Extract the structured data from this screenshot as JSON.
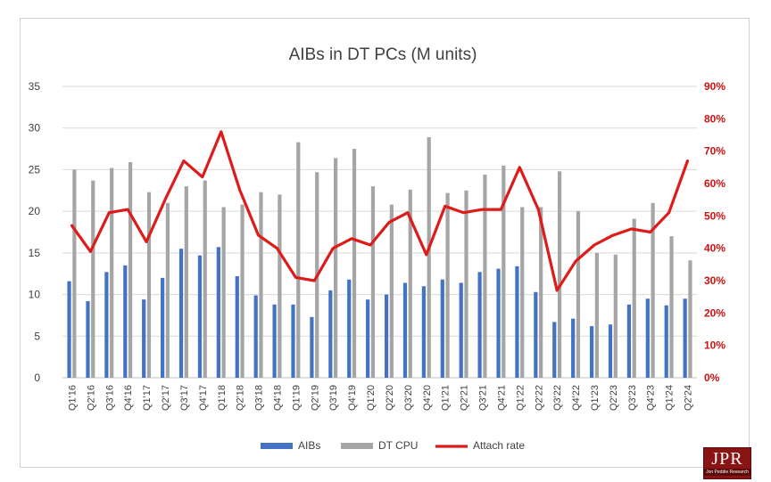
{
  "chart_data": {
    "type": "bar",
    "title": "AIBs in DT PCs (M units)",
    "categories": [
      "Q1'16",
      "Q2'16",
      "Q3'16",
      "Q4'16",
      "Q1'17",
      "Q2'17",
      "Q3'17",
      "Q4'17",
      "Q1'18",
      "Q2'18",
      "Q3'18",
      "Q4'18",
      "Q1'19",
      "Q2'19",
      "Q3'19",
      "Q4'19",
      "Q1'20",
      "Q2'20",
      "Q3'20",
      "Q4'20",
      "Q1'21",
      "Q2'21",
      "Q3'21",
      "Q4'21",
      "Q1'22",
      "Q2'22",
      "Q3'22",
      "Q4'22",
      "Q1'23",
      "Q2'23",
      "Q3'23",
      "Q4'23",
      "Q1'24",
      "Q2'24"
    ],
    "series": [
      {
        "name": "AIBs",
        "kind": "bar",
        "axis": "left",
        "color": "#4472c4",
        "values": [
          11.6,
          9.2,
          12.7,
          13.5,
          9.4,
          12.0,
          15.5,
          14.7,
          15.7,
          12.2,
          9.9,
          8.8,
          8.8,
          7.3,
          10.5,
          11.8,
          9.4,
          10.0,
          11.4,
          11.0,
          11.8,
          11.4,
          12.7,
          13.1,
          13.4,
          10.3,
          6.7,
          7.1,
          6.2,
          6.4,
          8.8,
          9.5,
          8.7,
          9.5
        ]
      },
      {
        "name": "DT CPU",
        "kind": "bar",
        "axis": "left",
        "color": "#a5a5a5",
        "values": [
          25.0,
          23.7,
          25.2,
          25.9,
          22.3,
          21.0,
          23.0,
          23.7,
          20.5,
          20.8,
          22.3,
          22.0,
          28.3,
          24.7,
          26.4,
          27.5,
          23.0,
          20.8,
          22.6,
          28.9,
          22.2,
          22.5,
          24.4,
          25.5,
          20.5,
          20.5,
          24.8,
          20.0,
          15.0,
          14.8,
          19.1,
          21.0,
          17.0,
          14.1
        ]
      },
      {
        "name": "Attach rate",
        "kind": "line",
        "axis": "right",
        "color": "#dd1c1a",
        "values": [
          47,
          39,
          51,
          52,
          42,
          55,
          67,
          62,
          76,
          58,
          44,
          40,
          31,
          30,
          40,
          43,
          41,
          48,
          51,
          38,
          53,
          51,
          52,
          52,
          65,
          52,
          27,
          36,
          41,
          44,
          46,
          45,
          51,
          67
        ]
      }
    ],
    "ylim": [
      0,
      35
    ],
    "yticks": [
      0,
      5,
      10,
      15,
      20,
      25,
      30,
      35
    ],
    "y2lim": [
      0,
      90
    ],
    "y2ticks": [
      "0%",
      "10%",
      "20%",
      "30%",
      "40%",
      "50%",
      "60%",
      "70%",
      "80%",
      "90%"
    ],
    "y2_color": "#cc1111",
    "grid": true,
    "legend_position": "bottom"
  },
  "logo": {
    "mark": "JPR",
    "sub": "Jon Peddie Research"
  }
}
